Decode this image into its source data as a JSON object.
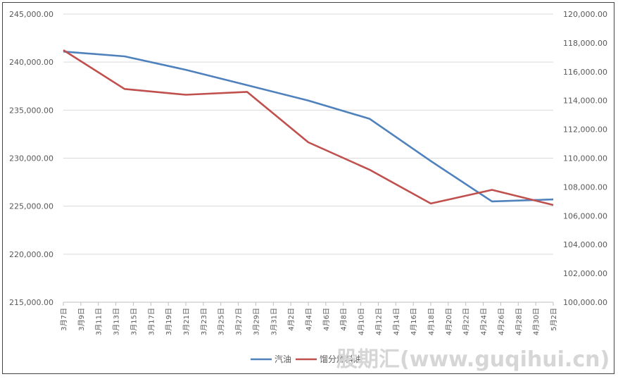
{
  "chart_data": {
    "type": "line",
    "title": "",
    "grid": true,
    "legend_position": "bottom",
    "x": [
      "3月7日",
      "3月9日",
      "3月11日",
      "3月13日",
      "3月15日",
      "3月17日",
      "3月19日",
      "3月21日",
      "3月23日",
      "3月25日",
      "3月27日",
      "3月29日",
      "3月31日",
      "4月2日",
      "4月4日",
      "4月6日",
      "4月8日",
      "4月10日",
      "4月12日",
      "4月14日",
      "4月16日",
      "4月18日",
      "4月20日",
      "4月22日",
      "4月24日",
      "4月26日",
      "4月28日",
      "4月30日",
      "5月2日"
    ],
    "y_left": {
      "ylim": [
        215000,
        245000
      ],
      "ticks": [
        "215,000.00",
        "220,000.00",
        "225,000.00",
        "230,000.00",
        "235,000.00",
        "240,000.00",
        "245,000.00"
      ]
    },
    "y_right": {
      "ylim": [
        100000,
        120000
      ],
      "ticks": [
        "100,000.00",
        "102,000.00",
        "104,000.00",
        "106,000.00",
        "108,000.00",
        "110,000.00",
        "112,000.00",
        "114,000.00",
        "116,000.00",
        "118,000.00",
        "120,000.00"
      ]
    },
    "series": [
      {
        "name": "汽油",
        "axis": "left",
        "color": "#4f81bd",
        "points": [
          [
            "3月7日",
            241100
          ],
          [
            "3月14日",
            240600
          ],
          [
            "3月21日",
            239200
          ],
          [
            "3月28日",
            237600
          ],
          [
            "4月4日",
            236000
          ],
          [
            "4月11日",
            234100
          ],
          [
            "4月18日",
            229700
          ],
          [
            "4月25日",
            225500
          ],
          [
            "5月2日",
            225700
          ]
        ]
      },
      {
        "name": "馏分燃料油",
        "axis": "right",
        "color": "#c0504d",
        "points": [
          [
            "3月7日",
            117500
          ],
          [
            "3月14日",
            114800
          ],
          [
            "3月21日",
            114400
          ],
          [
            "3月28日",
            114600
          ],
          [
            "4月4日",
            111100
          ],
          [
            "4月11日",
            109200
          ],
          [
            "4月18日",
            106850
          ],
          [
            "4月25日",
            107800
          ],
          [
            "5月2日",
            106750
          ]
        ]
      }
    ]
  },
  "watermark": "股期汇(www.guqihui.cn)"
}
